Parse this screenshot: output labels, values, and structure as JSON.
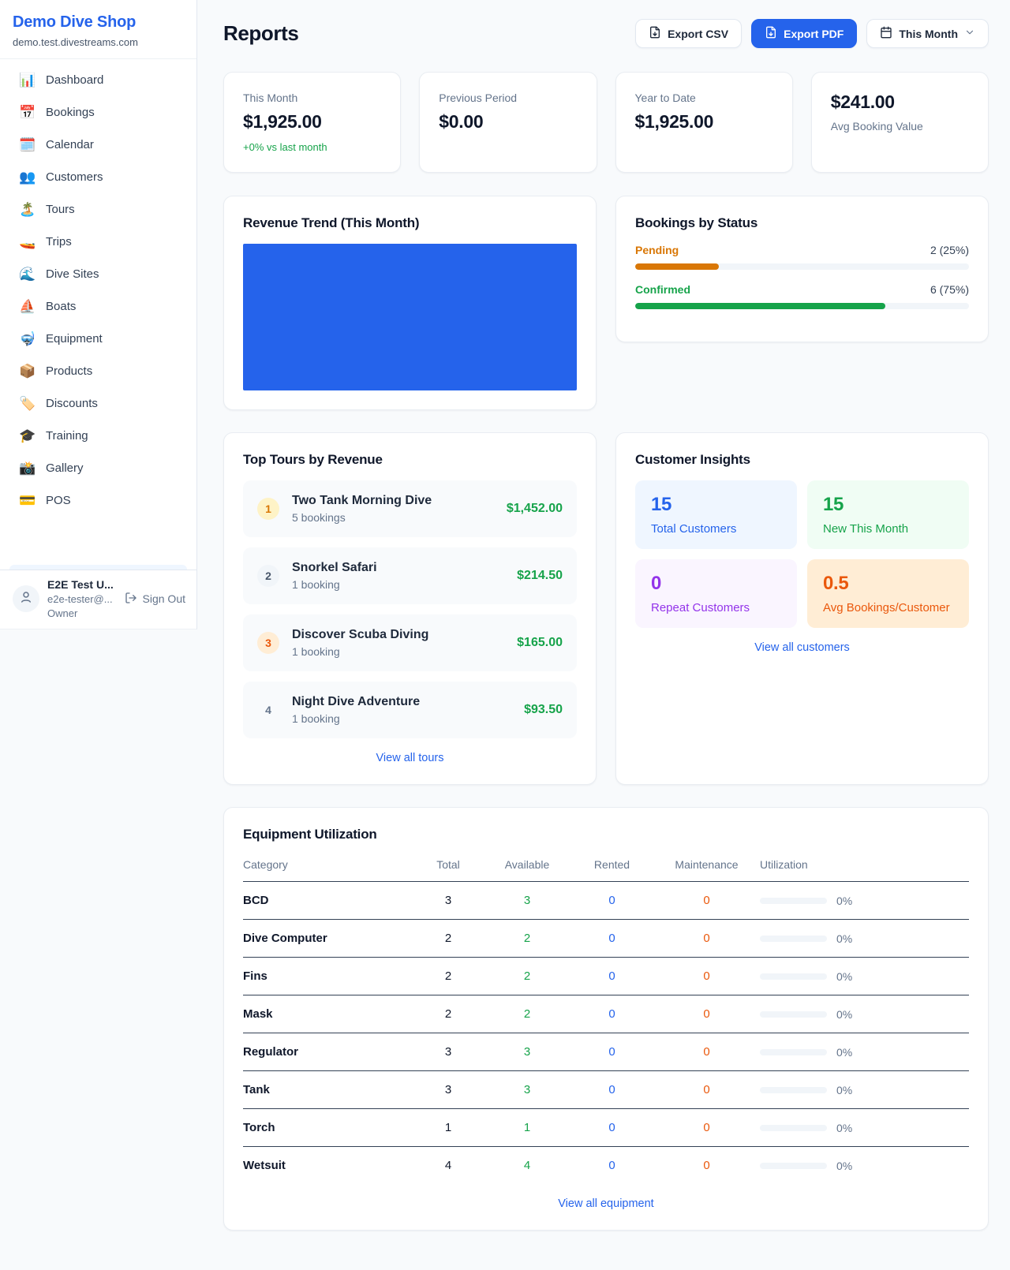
{
  "colors": {
    "accent_blue": "#2563eb",
    "green": "#16a34a",
    "amber": "#d97706",
    "orange": "#ea580c",
    "purple": "#9333ea"
  },
  "sidebar": {
    "title": "Demo Dive Shop",
    "subdomain": "demo.test.divestreams.com",
    "items": [
      {
        "icon": "📊",
        "label": "Dashboard"
      },
      {
        "icon": "📅",
        "label": "Bookings"
      },
      {
        "icon": "🗓️",
        "label": "Calendar"
      },
      {
        "icon": "👥",
        "label": "Customers"
      },
      {
        "icon": "🏝️",
        "label": "Tours"
      },
      {
        "icon": "🚤",
        "label": "Trips"
      },
      {
        "icon": "🌊",
        "label": "Dive Sites"
      },
      {
        "icon": "⛵",
        "label": "Boats"
      },
      {
        "icon": "🤿",
        "label": "Equipment"
      },
      {
        "icon": "📦",
        "label": "Products"
      },
      {
        "icon": "🏷️",
        "label": "Discounts"
      },
      {
        "icon": "🎓",
        "label": "Training"
      },
      {
        "icon": "📸",
        "label": "Gallery"
      },
      {
        "icon": "💳",
        "label": "POS"
      }
    ],
    "user": {
      "name": "E2E Test U...",
      "email": "e2e-tester@...",
      "role": "Owner",
      "sign_out": "Sign Out"
    }
  },
  "header": {
    "title": "Reports",
    "export_csv": "Export CSV",
    "export_pdf": "Export PDF",
    "period": "This Month"
  },
  "stats": [
    {
      "label": "This Month",
      "value": "$1,925.00",
      "delta": "+0% vs last month"
    },
    {
      "label": "Previous Period",
      "value": "$0.00"
    },
    {
      "label": "Year to Date",
      "value": "$1,925.00"
    },
    {
      "label": "Avg Booking Value",
      "value": "$241.00",
      "value_first": true
    }
  ],
  "revenue_trend": {
    "title": "Revenue Trend (This Month)",
    "type": "bar",
    "bars_pct": [
      100
    ],
    "bar_color": "#2563eb"
  },
  "bookings_by_status": {
    "title": "Bookings by Status",
    "items": [
      {
        "label": "Pending",
        "value_text": "2 (25%)",
        "pct": 25,
        "color": "#d97706"
      },
      {
        "label": "Confirmed",
        "value_text": "6 (75%)",
        "pct": 75,
        "color": "#16a34a"
      }
    ]
  },
  "top_tours": {
    "title": "Top Tours by Revenue",
    "view_all": "View all tours",
    "items": [
      {
        "rank": 1,
        "name": "Two Tank Morning Dive",
        "bookings": "5 bookings",
        "revenue": "$1,452.00"
      },
      {
        "rank": 2,
        "name": "Snorkel Safari",
        "bookings": "1 booking",
        "revenue": "$214.50"
      },
      {
        "rank": 3,
        "name": "Discover Scuba Diving",
        "bookings": "1 booking",
        "revenue": "$165.00"
      },
      {
        "rank": 4,
        "name": "Night Dive Adventure",
        "bookings": "1 booking",
        "revenue": "$93.50"
      }
    ]
  },
  "customer_insights": {
    "title": "Customer Insights",
    "view_all": "View all customers",
    "tiles": [
      {
        "value": "15",
        "label": "Total Customers",
        "scheme": "blue"
      },
      {
        "value": "15",
        "label": "New This Month",
        "scheme": "green"
      },
      {
        "value": "0",
        "label": "Repeat Customers",
        "scheme": "purple"
      },
      {
        "value": "0.5",
        "label": "Avg Bookings/Customer",
        "scheme": "orange"
      }
    ]
  },
  "equipment": {
    "title": "Equipment Utilization",
    "view_all": "View all equipment",
    "headers": [
      "Category",
      "Total",
      "Available",
      "Rented",
      "Maintenance",
      "Utilization"
    ],
    "rows": [
      {
        "category": "BCD",
        "total": "3",
        "available": "3",
        "rented": "0",
        "maintenance": "0",
        "utilization": "0%",
        "utilization_pct": 0
      },
      {
        "category": "Dive Computer",
        "total": "2",
        "available": "2",
        "rented": "0",
        "maintenance": "0",
        "utilization": "0%",
        "utilization_pct": 0
      },
      {
        "category": "Fins",
        "total": "2",
        "available": "2",
        "rented": "0",
        "maintenance": "0",
        "utilization": "0%",
        "utilization_pct": 0
      },
      {
        "category": "Mask",
        "total": "2",
        "available": "2",
        "rented": "0",
        "maintenance": "0",
        "utilization": "0%",
        "utilization_pct": 0
      },
      {
        "category": "Regulator",
        "total": "3",
        "available": "3",
        "rented": "0",
        "maintenance": "0",
        "utilization": "0%",
        "utilization_pct": 0
      },
      {
        "category": "Tank",
        "total": "3",
        "available": "3",
        "rented": "0",
        "maintenance": "0",
        "utilization": "0%",
        "utilization_pct": 0
      },
      {
        "category": "Torch",
        "total": "1",
        "available": "1",
        "rented": "0",
        "maintenance": "0",
        "utilization": "0%",
        "utilization_pct": 0
      },
      {
        "category": "Wetsuit",
        "total": "4",
        "available": "4",
        "rented": "0",
        "maintenance": "0",
        "utilization": "0%",
        "utilization_pct": 0
      }
    ]
  }
}
